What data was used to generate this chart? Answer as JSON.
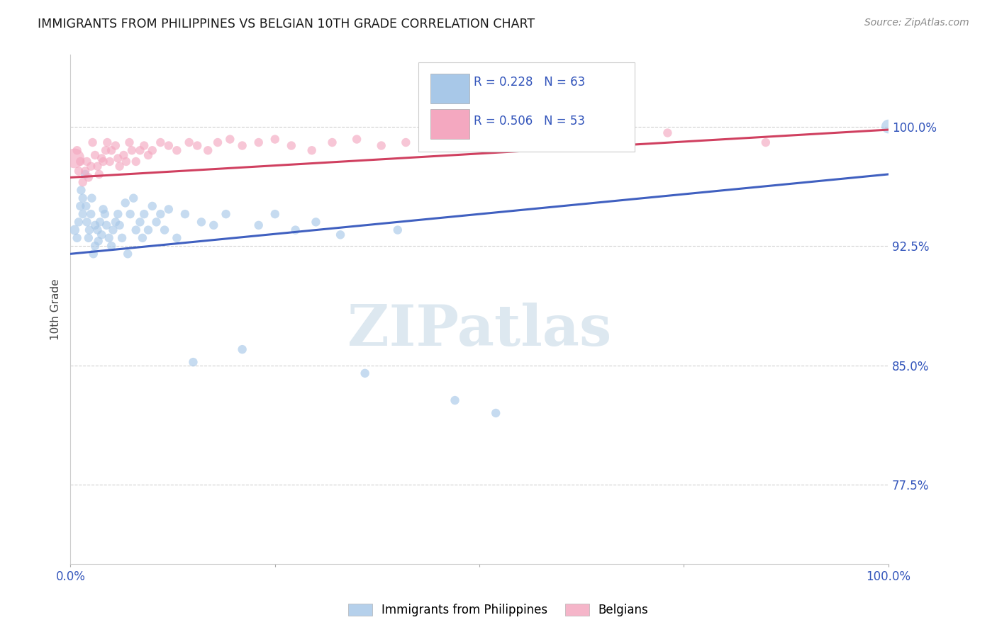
{
  "title": "IMMIGRANTS FROM PHILIPPINES VS BELGIAN 10TH GRADE CORRELATION CHART",
  "source": "Source: ZipAtlas.com",
  "ylabel": "10th Grade",
  "ytick_labels": [
    "77.5%",
    "85.0%",
    "92.5%",
    "100.0%"
  ],
  "ytick_values": [
    0.775,
    0.85,
    0.925,
    1.0
  ],
  "xlim": [
    0.0,
    1.0
  ],
  "ylim": [
    0.725,
    1.045
  ],
  "legend_blue_label": "Immigrants from Philippines",
  "legend_pink_label": "Belgians",
  "r_blue": 0.228,
  "n_blue": 63,
  "r_pink": 0.506,
  "n_pink": 53,
  "blue_color": "#a8c8e8",
  "pink_color": "#f4a8c0",
  "blue_line_color": "#4060c0",
  "pink_line_color": "#d04060",
  "background_color": "#ffffff",
  "grid_color": "#d0d0d0",
  "blue_line_x0": 0.0,
  "blue_line_y0": 0.92,
  "blue_line_x1": 1.0,
  "blue_line_y1": 0.97,
  "pink_line_x0": 0.0,
  "pink_line_y0": 0.968,
  "pink_line_x1": 1.0,
  "pink_line_y1": 0.998,
  "blue_scatter_x": [
    0.005,
    0.008,
    0.01,
    0.012,
    0.013,
    0.015,
    0.015,
    0.018,
    0.019,
    0.02,
    0.022,
    0.023,
    0.025,
    0.026,
    0.028,
    0.03,
    0.03,
    0.033,
    0.034,
    0.036,
    0.038,
    0.04,
    0.042,
    0.044,
    0.047,
    0.05,
    0.052,
    0.055,
    0.058,
    0.06,
    0.063,
    0.067,
    0.07,
    0.073,
    0.077,
    0.08,
    0.085,
    0.088,
    0.09,
    0.095,
    0.1,
    0.105,
    0.11,
    0.115,
    0.12,
    0.13,
    0.14,
    0.15,
    0.16,
    0.175,
    0.19,
    0.21,
    0.23,
    0.25,
    0.275,
    0.3,
    0.33,
    0.36,
    0.4,
    0.47,
    0.52,
    0.66,
    1.0
  ],
  "blue_scatter_y": [
    0.935,
    0.93,
    0.94,
    0.95,
    0.96,
    0.945,
    0.955,
    0.97,
    0.95,
    0.94,
    0.93,
    0.935,
    0.945,
    0.955,
    0.92,
    0.938,
    0.925,
    0.935,
    0.928,
    0.94,
    0.932,
    0.948,
    0.945,
    0.938,
    0.93,
    0.925,
    0.935,
    0.94,
    0.945,
    0.938,
    0.93,
    0.952,
    0.92,
    0.945,
    0.955,
    0.935,
    0.94,
    0.93,
    0.945,
    0.935,
    0.95,
    0.94,
    0.945,
    0.935,
    0.948,
    0.93,
    0.945,
    0.852,
    0.94,
    0.938,
    0.945,
    0.86,
    0.938,
    0.945,
    0.935,
    0.94,
    0.932,
    0.845,
    0.935,
    0.828,
    0.82,
    0.995,
    1.0
  ],
  "blue_scatter_sizes": [
    100,
    80,
    80,
    80,
    80,
    80,
    80,
    80,
    80,
    80,
    80,
    80,
    80,
    80,
    80,
    80,
    80,
    80,
    80,
    80,
    80,
    80,
    80,
    80,
    80,
    80,
    80,
    80,
    80,
    80,
    80,
    80,
    80,
    80,
    80,
    80,
    80,
    80,
    80,
    80,
    80,
    80,
    80,
    80,
    80,
    80,
    80,
    80,
    80,
    80,
    80,
    80,
    80,
    80,
    80,
    80,
    80,
    80,
    80,
    80,
    80,
    80,
    200
  ],
  "pink_scatter_x": [
    0.005,
    0.008,
    0.01,
    0.012,
    0.015,
    0.018,
    0.02,
    0.022,
    0.025,
    0.027,
    0.03,
    0.033,
    0.035,
    0.038,
    0.04,
    0.043,
    0.045,
    0.048,
    0.05,
    0.055,
    0.058,
    0.06,
    0.065,
    0.068,
    0.072,
    0.075,
    0.08,
    0.085,
    0.09,
    0.095,
    0.1,
    0.11,
    0.12,
    0.13,
    0.145,
    0.155,
    0.168,
    0.18,
    0.195,
    0.21,
    0.23,
    0.25,
    0.27,
    0.295,
    0.32,
    0.35,
    0.38,
    0.41,
    0.46,
    0.51,
    0.6,
    0.73,
    0.85
  ],
  "pink_scatter_y": [
    0.98,
    0.985,
    0.972,
    0.978,
    0.965,
    0.972,
    0.978,
    0.968,
    0.975,
    0.99,
    0.982,
    0.975,
    0.97,
    0.98,
    0.978,
    0.985,
    0.99,
    0.978,
    0.985,
    0.988,
    0.98,
    0.975,
    0.982,
    0.978,
    0.99,
    0.985,
    0.978,
    0.985,
    0.988,
    0.982,
    0.985,
    0.99,
    0.988,
    0.985,
    0.99,
    0.988,
    0.985,
    0.99,
    0.992,
    0.988,
    0.99,
    0.992,
    0.988,
    0.985,
    0.99,
    0.992,
    0.988,
    0.99,
    0.992,
    0.988,
    0.993,
    0.996,
    0.99
  ],
  "pink_scatter_sizes": [
    400,
    80,
    80,
    80,
    80,
    80,
    80,
    80,
    80,
    80,
    80,
    80,
    80,
    80,
    80,
    80,
    80,
    80,
    80,
    80,
    80,
    80,
    80,
    80,
    80,
    80,
    80,
    80,
    80,
    80,
    80,
    80,
    80,
    80,
    80,
    80,
    80,
    80,
    80,
    80,
    80,
    80,
    80,
    80,
    80,
    80,
    80,
    80,
    80,
    80,
    80,
    80,
    80
  ]
}
